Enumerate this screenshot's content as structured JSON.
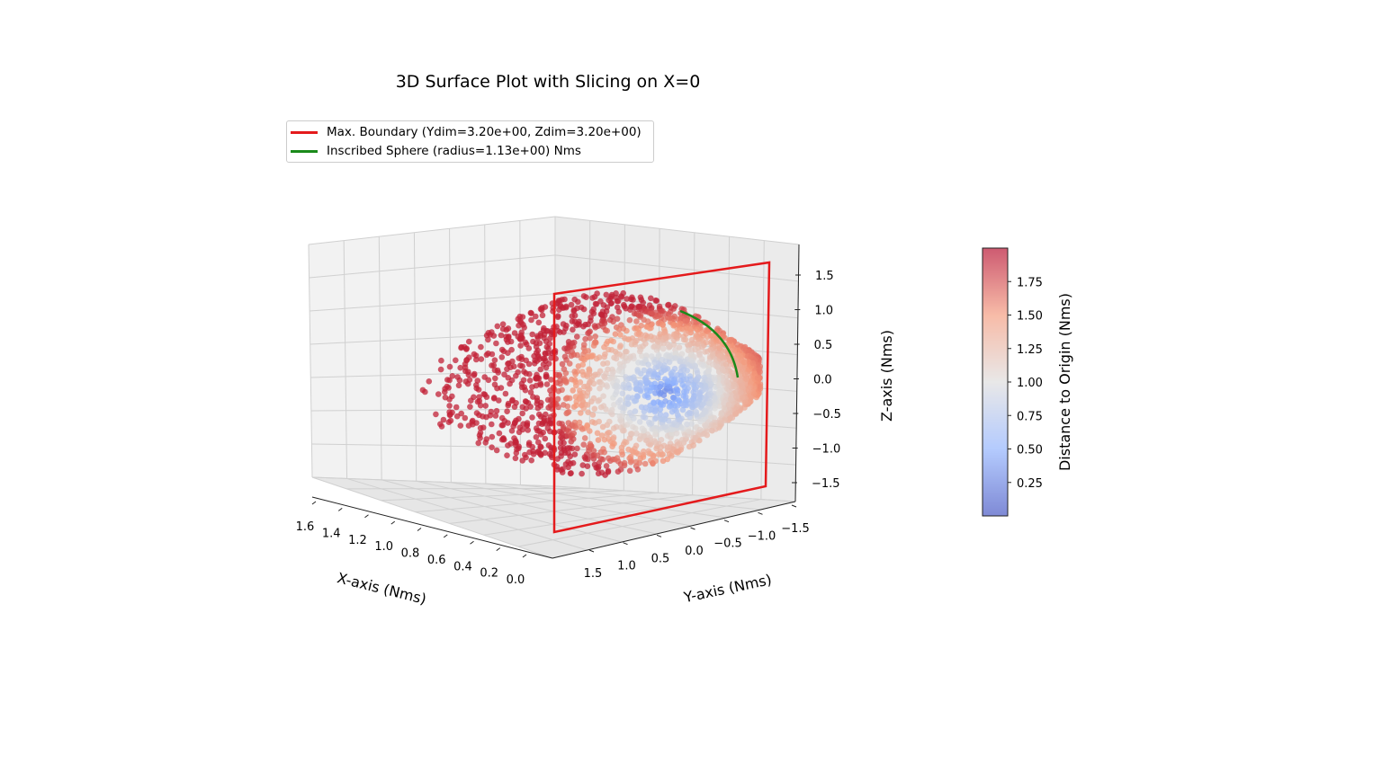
{
  "chart_data": {
    "type": "scatter3d",
    "title": "3D Surface Plot with Slicing on X=0",
    "xlabel": "X-axis (Nms)",
    "ylabel": "Y-axis (Nms)",
    "zlabel": "Z-axis (Nms)",
    "xticks": [
      "1.6",
      "1.4",
      "1.2",
      "1.0",
      "0.8",
      "0.6",
      "0.4",
      "0.2",
      "0.0"
    ],
    "yticks": [
      "1.5",
      "1.0",
      "0.5",
      "0.0",
      "−0.5",
      "−1.0",
      "−1.5"
    ],
    "zticks": [
      "1.5",
      "1.0",
      "0.5",
      "0.0",
      "−0.5",
      "−1.0",
      "−1.5"
    ],
    "xlim": [
      0,
      1.7
    ],
    "ylim": [
      -1.8,
      1.8
    ],
    "zlim": [
      -1.8,
      1.8
    ],
    "grid": true,
    "legend": {
      "placement": "top-left",
      "entries": [
        {
          "label": "Max. Boundary (Ydim=3.20e+00, Zdim=3.20e+00)",
          "color": "#e41a1c"
        },
        {
          "label": "Inscribed Sphere (radius=1.13e+00) Nms",
          "color": "#1a8a1a"
        }
      ]
    },
    "series": [
      {
        "name": "Max. Boundary (Ydim=3.20e+00, Zdim=3.20e+00)",
        "kind": "rectangle",
        "plane": "x=0",
        "y_range": [
          -1.6,
          1.6
        ],
        "z_range": [
          -1.6,
          1.6
        ]
      },
      {
        "name": "Inscribed Sphere (radius=1.13e+00) Nms",
        "kind": "arc",
        "plane": "x=0",
        "radius": 1.13
      }
    ],
    "surface": {
      "kind": "scatter cloud",
      "x_range": [
        0,
        1.6
      ],
      "y_range": [
        -1.6,
        1.6
      ],
      "z_range": [
        -1.2,
        1.3
      ],
      "color_value": "distance to origin"
    },
    "colorbar": {
      "label": "Distance to Origin (Nms)",
      "ticks": [
        "0.25",
        "0.50",
        "0.75",
        "1.00",
        "1.25",
        "1.50",
        "1.75"
      ],
      "range": [
        0,
        2.0
      ],
      "colormap": "coolwarm"
    }
  }
}
